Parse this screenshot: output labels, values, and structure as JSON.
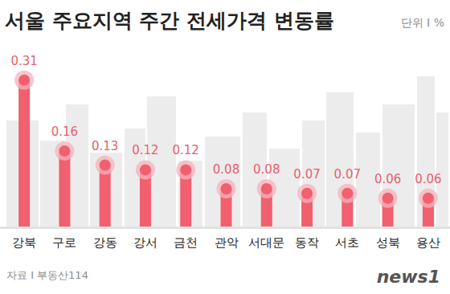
{
  "chart_data": {
    "type": "bar",
    "title": "서울 주요지역 주간 전세가격 변동률",
    "unit_label": "단위 I %",
    "source": "자료 I 부동산114",
    "logo": "news1",
    "categories": [
      "강북",
      "구로",
      "강동",
      "강서",
      "금천",
      "관악",
      "서대문",
      "동작",
      "서초",
      "성북",
      "용산"
    ],
    "values": [
      0.31,
      0.16,
      0.13,
      0.12,
      0.12,
      0.08,
      0.08,
      0.07,
      0.07,
      0.06,
      0.06
    ],
    "color": "#f0606f",
    "ylim": [
      0,
      0.34
    ],
    "data_labels": true,
    "tick_labels": "x",
    "grid": false
  }
}
